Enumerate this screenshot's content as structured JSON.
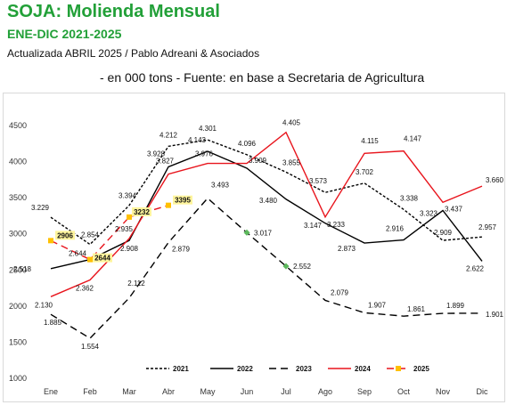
{
  "header": {
    "title": "SOJA: Molienda Mensual",
    "subtitle": "ENE-DIC 2021-2025",
    "updated": "Actualizada  ABRIL   2025 / Pablo Adreani & Asociados",
    "units": "- en 000 tons - Fuente: en base a Secretaria de Agricultura"
  },
  "chart_data": {
    "type": "line",
    "categories": [
      "Ene",
      "Feb",
      "Mar",
      "Abr",
      "May",
      "Jun",
      "Jul",
      "Ago",
      "Sep",
      "Oct",
      "Nov",
      "Dic"
    ],
    "ylim": [
      1000,
      4500
    ],
    "yticks": [
      1000,
      1500,
      2000,
      2500,
      3000,
      3500,
      4000,
      4500
    ],
    "grid": false,
    "legend_position": "bottom",
    "series": [
      {
        "name": "2021",
        "style": "dotted",
        "color": "#000000",
        "values": [
          3229,
          2854,
          3394,
          4212,
          4301,
          4096,
          3855,
          3573,
          3702,
          3338,
          2909,
          2957
        ],
        "labels": [
          "3.229",
          "2.854",
          "3.394",
          "4.212",
          "4.301",
          "4.096",
          "3.855",
          "3.573",
          "3.702",
          "3.338",
          "2.909",
          "2.957"
        ]
      },
      {
        "name": "2022",
        "style": "solid",
        "color": "#000000",
        "values": [
          2518,
          2644,
          2908,
          3928,
          4143,
          3909,
          3480,
          3147,
          2873,
          2916,
          3323,
          2622
        ],
        "labels": [
          "2.518",
          "2.644",
          "2.908",
          "3.928",
          "4.143",
          "3.909",
          "3.480",
          "3.147",
          "2.873",
          "2.916",
          "3.323",
          "2.622"
        ]
      },
      {
        "name": "2023",
        "style": "dashed",
        "color": "#000000",
        "values": [
          1885,
          1554,
          2112,
          2879,
          3493,
          3017,
          2552,
          2079,
          1907,
          1861,
          1899,
          1901
        ],
        "labels": [
          "1.885",
          "1.554",
          "2.112",
          "2.879",
          "3.493",
          "3.017",
          "2.552",
          "2.079",
          "1.907",
          "1.861",
          "1.899",
          "1.901"
        ]
      },
      {
        "name": "2024",
        "style": "solid",
        "color": "#e8141c",
        "values": [
          2130,
          2362,
          2935,
          3827,
          3976,
          3976,
          4405,
          3233,
          4115,
          4147,
          3437,
          3660
        ],
        "labels": [
          "2.130",
          "2.362",
          "2.935",
          "3.827",
          "3.976",
          "",
          "4.405",
          "3.233",
          "4.115",
          "4.147",
          "3.437",
          "3.660"
        ]
      },
      {
        "name": "2025",
        "style": "dashed",
        "color": "#e8141c",
        "marker_color": "#ffc000",
        "values": [
          2906,
          2644,
          3232,
          3395,
          null,
          null,
          null,
          null,
          null,
          null,
          null,
          null
        ],
        "labels": [
          "2906",
          "2644",
          "3232",
          "3395",
          "",
          "",
          "",
          "",
          "",
          "",
          "",
          ""
        ]
      }
    ]
  }
}
